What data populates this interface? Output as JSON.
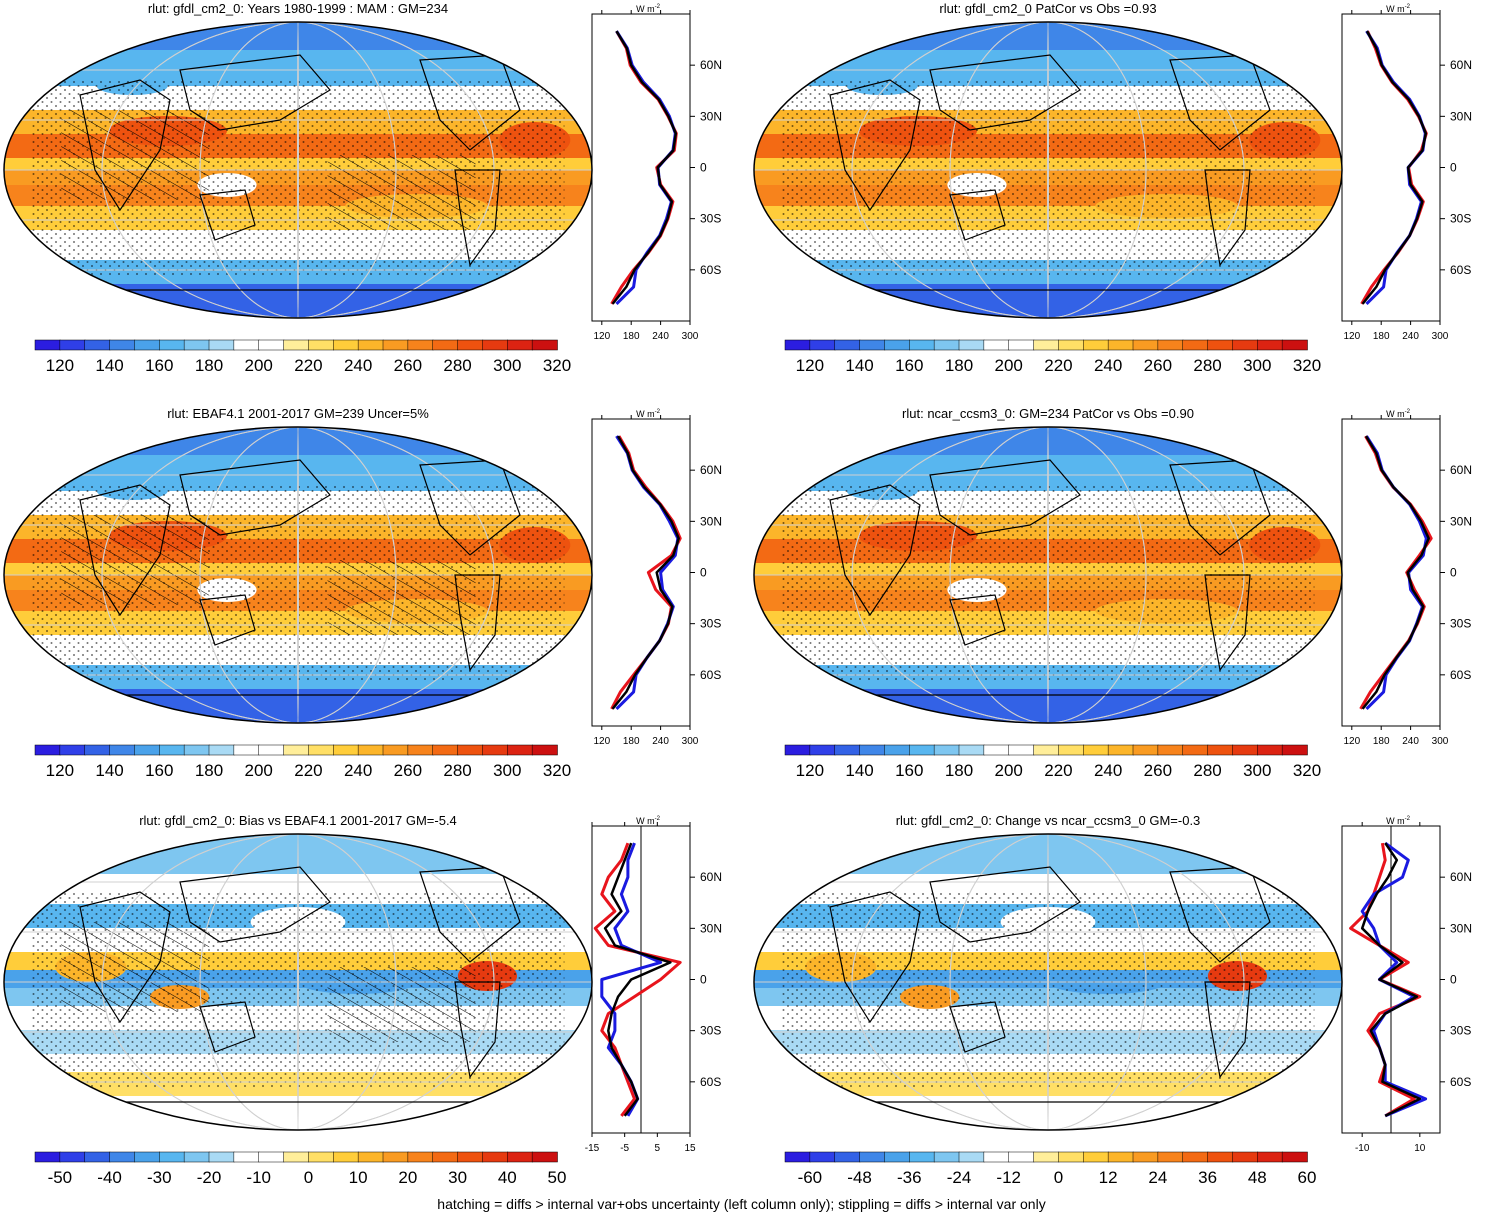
{
  "footnote": "hatching = diffs > internal var+obs uncertainty (left column only); stippling = diffs > internal var only",
  "unit_label": "W m",
  "unit_exp": "-2",
  "lat_ticks": [
    "60N",
    "30N",
    "0",
    "30S",
    "60S"
  ],
  "colorbars": {
    "abs": {
      "labels": [
        "120",
        "140",
        "160",
        "180",
        "200",
        "220",
        "240",
        "260",
        "280",
        "300",
        "320"
      ],
      "colors": [
        "#2b1de0",
        "#2f3fe8",
        "#3362e6",
        "#3f86e8",
        "#4aa2ea",
        "#58b6ef",
        "#7ec6f0",
        "#a9daf4",
        "#ffffff",
        "#ffffff",
        "#ffee9a",
        "#ffdf66",
        "#ffcd3a",
        "#fcb52a",
        "#f99b22",
        "#f7831c",
        "#f36a14",
        "#ee520f",
        "#e63a10",
        "#dc2312",
        "#cc1010"
      ]
    },
    "bias": {
      "labels": [
        "-50",
        "-40",
        "-30",
        "-20",
        "-10",
        "0",
        "10",
        "20",
        "30",
        "40",
        "50"
      ],
      "colors": [
        "#2b1de0",
        "#2f3fe8",
        "#3362e6",
        "#3f86e8",
        "#4aa2ea",
        "#58b6ef",
        "#7ec6f0",
        "#a9daf4",
        "#ffffff",
        "#ffffff",
        "#ffee9a",
        "#ffdf66",
        "#ffcd3a",
        "#fcb52a",
        "#f99b22",
        "#f7831c",
        "#f36a14",
        "#ee520f",
        "#e63a10",
        "#dc2312",
        "#cc1010"
      ]
    },
    "change": {
      "labels": [
        "-60",
        "-48",
        "-36",
        "-24",
        "-12",
        "0",
        "12",
        "24",
        "36",
        "48",
        "60"
      ],
      "colors": [
        "#2b1de0",
        "#2f3fe8",
        "#3362e6",
        "#3f86e8",
        "#4aa2ea",
        "#58b6ef",
        "#7ec6f0",
        "#a9daf4",
        "#ffffff",
        "#ffffff",
        "#ffee9a",
        "#ffdf66",
        "#ffcd3a",
        "#fcb52a",
        "#f99b22",
        "#f7831c",
        "#f36a14",
        "#ee520f",
        "#e63a10",
        "#dc2312",
        "#cc1010"
      ]
    }
  },
  "panels": [
    {
      "title": "rlut: gfdl_cm2_0: Years 1980-1999 : MAM : GM=234",
      "cbar": "abs",
      "xticks": [
        "120",
        "180",
        "240",
        "300"
      ],
      "xrange": [
        100,
        300
      ]
    },
    {
      "title": "rlut: gfdl_cm2_0 PatCor vs Obs =0.93",
      "cbar": "abs",
      "xticks": [
        "120",
        "180",
        "240",
        "300"
      ],
      "xrange": [
        100,
        300
      ]
    },
    {
      "title": "rlut: EBAF4.1 2001-2017 GM=239 Uncer=5%",
      "cbar": "abs",
      "xticks": [
        "120",
        "180",
        "240",
        "300"
      ],
      "xrange": [
        100,
        300
      ]
    },
    {
      "title": "rlut: ncar_ccsm3_0: GM=234 PatCor vs Obs =0.90",
      "cbar": "abs",
      "xticks": [
        "120",
        "180",
        "240",
        "300"
      ],
      "xrange": [
        100,
        300
      ]
    },
    {
      "title": "rlut: gfdl_cm2_0: Bias vs EBAF4.1 2001-2017 GM=-5.4",
      "cbar": "bias",
      "xticks": [
        "-15",
        "-5",
        "5",
        "15"
      ],
      "xrange": [
        -15,
        15
      ]
    },
    {
      "title": "rlut: gfdl_cm2_0: Change vs ncar_ccsm3_0 GM=-0.3",
      "cbar": "change",
      "xticks": [
        "-10",
        "10"
      ],
      "xrange": [
        -17,
        17
      ]
    }
  ],
  "series_colors": {
    "model": "#e8141c",
    "obs": "#1a1ae0",
    "mean": "#000000"
  },
  "chart_data": [
    {
      "type": "line",
      "title": "rlut: gfdl_cm2_0: Years 1980-1999 : MAM : GM=234",
      "y": [
        80,
        70,
        60,
        50,
        40,
        30,
        20,
        10,
        0,
        -10,
        -20,
        -30,
        -40,
        -50,
        -60,
        -70,
        -80
      ],
      "series": [
        {
          "values": [
            150,
            170,
            178,
            200,
            235,
            255,
            272,
            268,
            232,
            240,
            265,
            255,
            240,
            215,
            185,
            160,
            140
          ]
        },
        {
          "values": [
            150,
            172,
            182,
            205,
            238,
            258,
            270,
            265,
            235,
            238,
            262,
            252,
            238,
            212,
            190,
            185,
            150
          ]
        },
        {
          "values": [
            150,
            171,
            180,
            202,
            236,
            256,
            271,
            266,
            234,
            239,
            263,
            254,
            239,
            214,
            187,
            170,
            142
          ]
        }
      ]
    },
    {
      "type": "line",
      "title": "rlut: gfdl_cm2_0 PatCor vs Obs =0.93",
      "y": [
        80,
        70,
        60,
        50,
        40,
        30,
        20,
        10,
        0,
        -10,
        -20,
        -30,
        -40,
        -50,
        -60,
        -70,
        -80
      ],
      "series": [
        {
          "values": [
            152,
            168,
            180,
            202,
            234,
            256,
            272,
            262,
            236,
            242,
            266,
            254,
            238,
            214,
            186,
            160,
            140
          ]
        },
        {
          "values": [
            150,
            172,
            182,
            205,
            238,
            258,
            270,
            265,
            235,
            238,
            262,
            252,
            238,
            212,
            190,
            185,
            150
          ]
        },
        {
          "values": [
            151,
            170,
            181,
            203,
            236,
            257,
            271,
            264,
            235,
            240,
            264,
            253,
            238,
            213,
            188,
            170,
            142
          ]
        }
      ]
    },
    {
      "type": "line",
      "title": "rlut: EBAF4.1 2001-2017 GM=239 Uncer=5%",
      "y": [
        80,
        70,
        60,
        50,
        40,
        30,
        20,
        10,
        0,
        -10,
        -20,
        -30,
        -40,
        -50,
        -60,
        -70,
        -80
      ],
      "series": [
        {
          "values": [
            155,
            175,
            185,
            210,
            240,
            265,
            280,
            262,
            215,
            230,
            262,
            256,
            238,
            212,
            185,
            158,
            140
          ]
        },
        {
          "values": [
            150,
            172,
            182,
            205,
            238,
            258,
            275,
            270,
            240,
            244,
            266,
            254,
            238,
            212,
            190,
            185,
            150
          ]
        },
        {
          "values": [
            153,
            173,
            183,
            207,
            239,
            262,
            277,
            266,
            232,
            240,
            264,
            255,
            238,
            212,
            188,
            170,
            142
          ]
        }
      ]
    },
    {
      "type": "line",
      "title": "rlut: ncar_ccsm3_0: GM=234 PatCor vs Obs =0.90",
      "y": [
        80,
        70,
        60,
        50,
        40,
        30,
        20,
        10,
        0,
        -10,
        -20,
        -30,
        -40,
        -50,
        -60,
        -70,
        -80
      ],
      "series": [
        {
          "values": [
            148,
            168,
            180,
            204,
            240,
            264,
            282,
            258,
            232,
            248,
            268,
            254,
            236,
            210,
            184,
            158,
            138
          ]
        },
        {
          "values": [
            150,
            172,
            182,
            205,
            238,
            258,
            272,
            266,
            236,
            240,
            264,
            252,
            238,
            212,
            190,
            185,
            150
          ]
        },
        {
          "values": [
            149,
            170,
            181,
            205,
            239,
            261,
            277,
            262,
            234,
            244,
            266,
            253,
            237,
            211,
            187,
            170,
            142
          ]
        }
      ]
    },
    {
      "type": "line",
      "title": "rlut: gfdl_cm2_0: Bias vs EBAF4.1 2001-2017 GM=-5.4",
      "y": [
        80,
        70,
        60,
        50,
        40,
        30,
        20,
        10,
        0,
        -10,
        -20,
        -30,
        -40,
        -50,
        -60,
        -70,
        -80
      ],
      "series": [
        {
          "values": [
            -4,
            -6,
            -10,
            -12,
            -8,
            -14,
            -10,
            12,
            6,
            -2,
            -10,
            -12,
            -8,
            -6,
            -4,
            -2,
            -6
          ]
        },
        {
          "values": [
            -2,
            -4,
            -4,
            -6,
            -4,
            -8,
            -6,
            6,
            -12,
            -12,
            -8,
            -8,
            -10,
            -6,
            -3,
            -1,
            -4
          ]
        },
        {
          "values": [
            -3,
            -5,
            -7,
            -9,
            -6,
            -11,
            -8,
            9,
            -3,
            -7,
            -9,
            -10,
            -9,
            -6,
            -3,
            -1,
            -5
          ]
        }
      ]
    },
    {
      "type": "line",
      "title": "rlut: gfdl_cm2_0: Change vs ncar_ccsm3_0 GM=-0.3",
      "y": [
        80,
        70,
        60,
        50,
        40,
        30,
        20,
        10,
        0,
        -10,
        -20,
        -30,
        -40,
        -50,
        -60,
        -70,
        -80
      ],
      "series": [
        {
          "values": [
            -3,
            -2,
            -4,
            -6,
            -8,
            -14,
            -4,
            6,
            -4,
            10,
            -4,
            -8,
            -4,
            -2,
            -4,
            8,
            -2
          ]
        },
        {
          "values": [
            -2,
            6,
            4,
            -6,
            -10,
            -6,
            -4,
            2,
            -4,
            8,
            -2,
            -6,
            -4,
            -2,
            -2,
            12,
            -2
          ]
        },
        {
          "values": [
            -2,
            2,
            -1,
            -5,
            -8,
            -10,
            -4,
            4,
            -4,
            9,
            -2,
            -7,
            -4,
            -2,
            -3,
            10,
            -2
          ]
        }
      ]
    }
  ]
}
